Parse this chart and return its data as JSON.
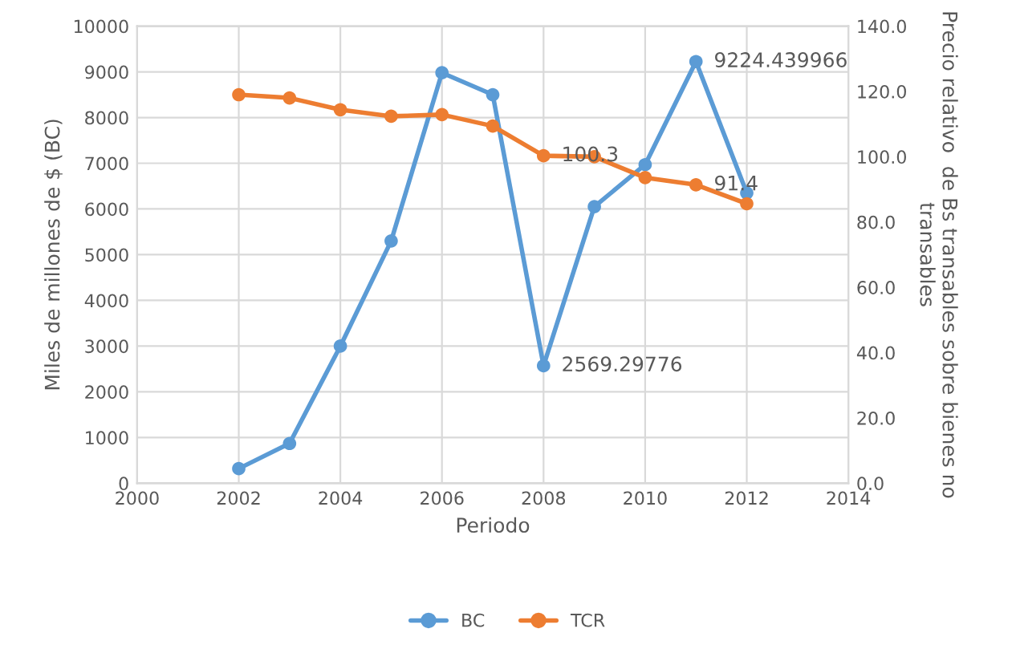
{
  "chart_data": {
    "type": "line",
    "xlabel": "Periodo",
    "ylabel": "Miles de millones de $ (BC)",
    "y2label": "Precio relativo  de Bs transables sobre bienes no transables",
    "x": [
      2002,
      2003,
      2004,
      2005,
      2006,
      2007,
      2008,
      2009,
      2010,
      2011,
      2012
    ],
    "series": [
      {
        "name": "BC",
        "color": "#5b9bd5",
        "values": [
          320,
          870,
          3000,
          5300,
          8980,
          8500,
          2569.29776,
          6050,
          6970,
          9224.439966,
          6350
        ],
        "value_labels": [
          null,
          null,
          null,
          null,
          null,
          null,
          "2569.29776",
          null,
          null,
          "9224.439966",
          null
        ]
      },
      {
        "name": "TCR",
        "color": "#ed7d31",
        "axis": "y2",
        "values": [
          119.0,
          118.0,
          114.4,
          112.4,
          112.9,
          109.4,
          100.3,
          100.0,
          93.6,
          91.4,
          85.6
        ],
        "value_labels": [
          null,
          null,
          null,
          null,
          null,
          null,
          "100.3",
          null,
          null,
          "91.4",
          null
        ]
      }
    ],
    "xlim": [
      2000,
      2014
    ],
    "xticks": [
      2000,
      2002,
      2004,
      2006,
      2008,
      2010,
      2012,
      2014
    ],
    "ylim": [
      0,
      10000
    ],
    "yticks": [
      0,
      1000,
      2000,
      3000,
      4000,
      5000,
      6000,
      7000,
      8000,
      9000,
      10000
    ],
    "y2lim": [
      0,
      140
    ],
    "y2ticks": [
      {
        "value": 0,
        "label": "0.0"
      },
      {
        "value": 20,
        "label": "20.0"
      },
      {
        "value": 40,
        "label": "40.0"
      },
      {
        "value": 60,
        "label": "60.0"
      },
      {
        "value": 80,
        "label": "80.0"
      },
      {
        "value": 100,
        "label": "100.0"
      },
      {
        "value": 120,
        "label": "120.0"
      },
      {
        "value": 140,
        "label": "140.0"
      }
    ],
    "grid": true,
    "legend": "bottom",
    "marker": "circle",
    "line_style": "solid"
  }
}
